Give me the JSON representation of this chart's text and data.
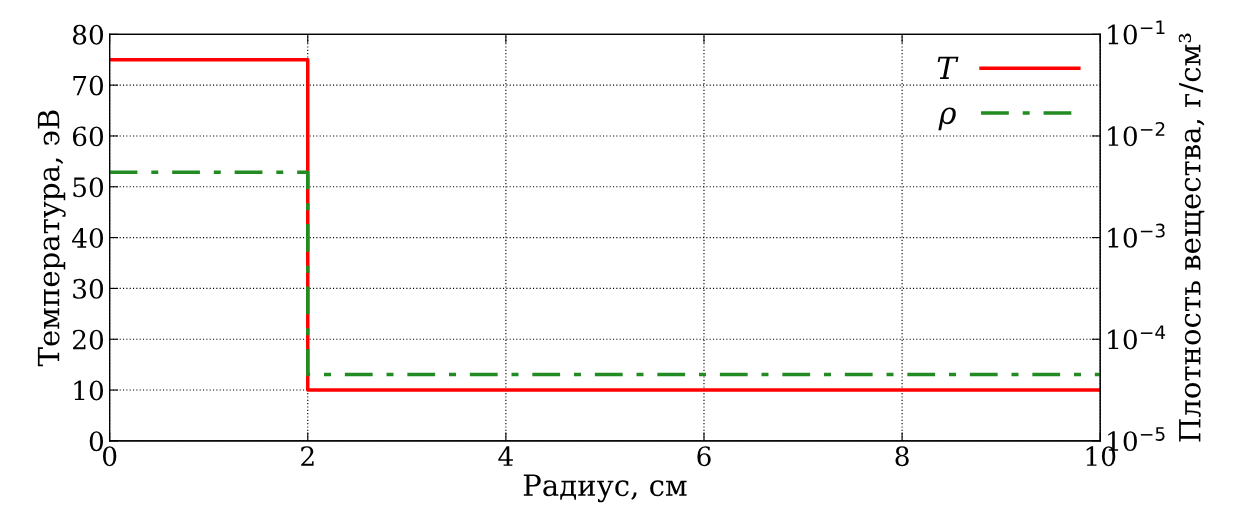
{
  "chart_data": {
    "type": "line",
    "xlabel": "Радиус, см",
    "ylabel": "Температура, эВ",
    "y2label": "Плотность вещества, г/см³",
    "xlim": [
      0,
      10
    ],
    "xticks": [
      0,
      2,
      4,
      6,
      8,
      10
    ],
    "ylim": [
      0,
      80
    ],
    "yticks": [
      0,
      10,
      20,
      30,
      40,
      50,
      60,
      70,
      80
    ],
    "y2lim": [
      1e-05,
      0.1
    ],
    "y2ticks": [
      {
        "value": 1e-05,
        "label": "10$^{−5}$"
      },
      {
        "value": 0.0001,
        "label": "10$^{−4}$"
      },
      {
        "value": 0.001,
        "label": "10$^{−3}$"
      },
      {
        "value": 0.01,
        "label": "10$^{−2}$"
      },
      {
        "value": 0.1,
        "label": "10$^{−1}$"
      }
    ],
    "log": "y2",
    "grid": true,
    "legend": "top right",
    "series": [
      {
        "name": "T",
        "color": "#ff0000",
        "x": [
          0,
          2,
          2,
          10
        ],
        "values": [
          75,
          75,
          10,
          10
        ],
        "line_style": "solid"
      },
      {
        "name": "ρ",
        "color": "#228b22",
        "axis": "y2",
        "x": [
          0,
          2,
          2,
          10
        ],
        "values": [
          0.0044,
          0.0044,
          4.5e-05,
          4.5e-05
        ],
        "line_style": "dashdot"
      }
    ]
  }
}
